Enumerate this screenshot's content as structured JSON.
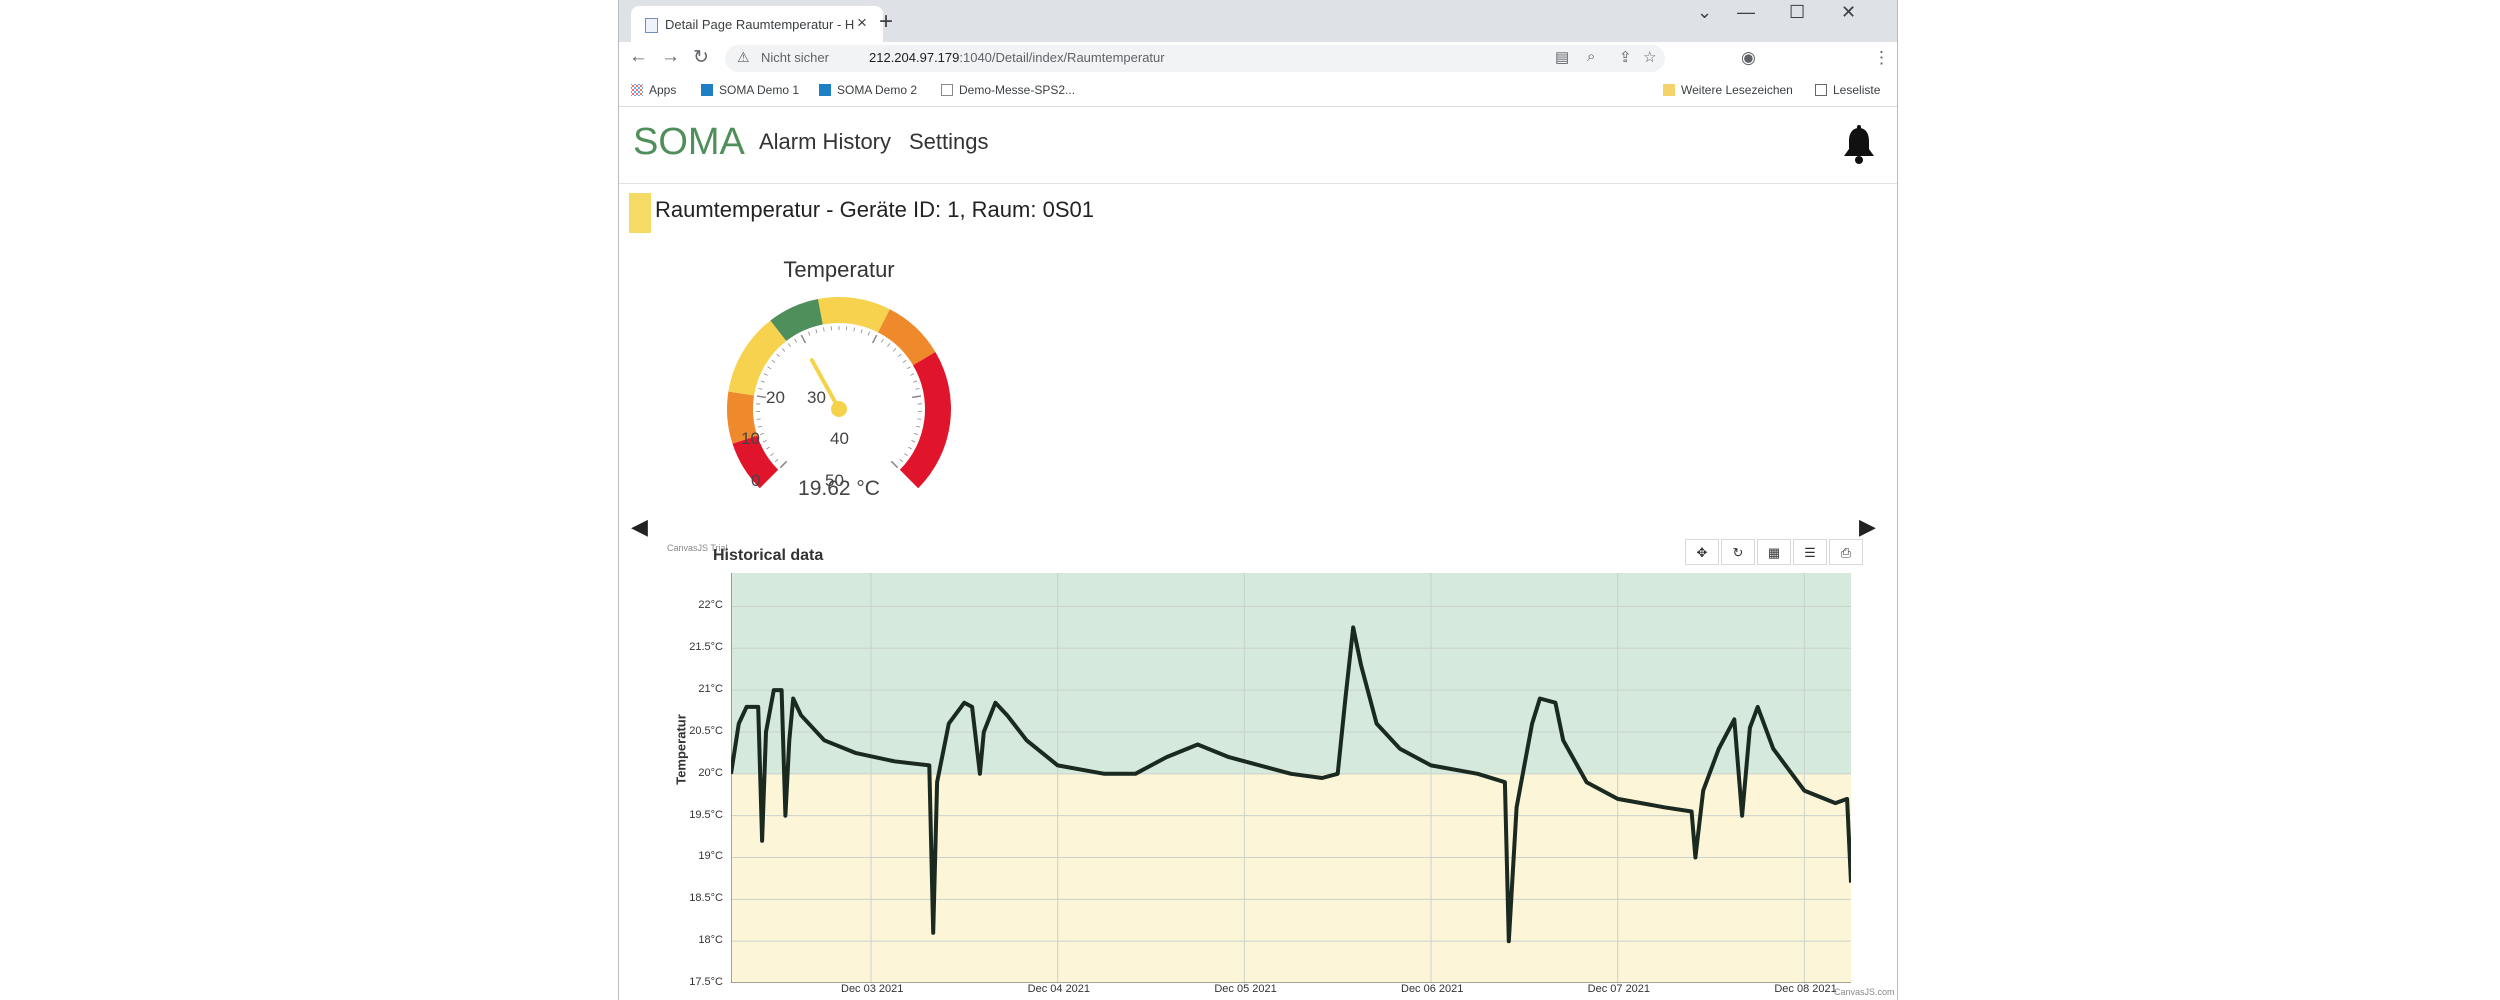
{
  "browser": {
    "tab_title": "Detail Page Raumtemperatur - H",
    "security_label": "Nicht sicher",
    "url_host": "212.204.97.179",
    "url_path": ":1040/Detail/index/Raumtemperatur",
    "bookmarks": [
      "Apps",
      "SOMA Demo 1",
      "SOMA Demo 2",
      "Demo-Messe-SPS2..."
    ],
    "other_bookmarks": "Weitere Lesezeichen",
    "reading_list": "Leseliste"
  },
  "app": {
    "brand": "SOMA",
    "nav": [
      "Alarm History",
      "Settings"
    ],
    "brand_color": "#4f8f5b"
  },
  "device": {
    "title": "Raumtemperatur - Geräte ID: 1, Raum: 0S01",
    "status_color": "#f5da66"
  },
  "gauge": {
    "title": "Temperatur",
    "ticks": [
      "0",
      "10",
      "20",
      "30",
      "40",
      "50"
    ],
    "min": 0,
    "max": 50,
    "value": 19.62,
    "readout": "19.62 °C",
    "bands": [
      {
        "from": 0,
        "to": 5,
        "color": "#e0152b"
      },
      {
        "from": 5,
        "to": 10,
        "color": "#ee8a2c"
      },
      {
        "from": 10,
        "to": 18,
        "color": "#f6d24f"
      },
      {
        "from": 18,
        "to": 23,
        "color": "#4f8f5b"
      },
      {
        "from": 23,
        "to": 30,
        "color": "#f6d24f"
      },
      {
        "from": 30,
        "to": 36,
        "color": "#ee8a2c"
      },
      {
        "from": 36,
        "to": 50,
        "color": "#e0152b"
      }
    ]
  },
  "history": {
    "trial_label": "CanvasJS Trial",
    "credit": "CanvasJS.com",
    "title": "Historical data",
    "toolbar": [
      "pan",
      "reset",
      "chart-type",
      "list",
      "export"
    ]
  },
  "chart_data": {
    "type": "line",
    "title": "Historical data",
    "ylabel": "Temperatur",
    "ylim": [
      17.5,
      22.4
    ],
    "y_ticks": [
      "17.5°C",
      "18°C",
      "18.5°C",
      "19°C",
      "19.5°C",
      "20°C",
      "20.5°C",
      "21°C",
      "21.5°C",
      "22°C"
    ],
    "x_ticks": [
      "Dec 03 2021",
      "Dec 04 2021",
      "Dec 05 2021",
      "Dec 06 2021",
      "Dec 07 2021",
      "Dec 08 2021"
    ],
    "x_range": [
      "2021-12-02T06:00",
      "2021-12-08T06:00"
    ],
    "bands": [
      {
        "from": 20,
        "to": 22.4,
        "color": "#d5e9dc"
      },
      {
        "from": 17.5,
        "to": 20,
        "color": "#fdf5d8"
      }
    ],
    "grid": true,
    "series": [
      {
        "color": "#1a2a20",
        "points": [
          [
            "2021-12-02T06:00",
            20.0
          ],
          [
            "2021-12-02T07:00",
            20.6
          ],
          [
            "2021-12-02T08:00",
            20.8
          ],
          [
            "2021-12-02T09:30",
            20.8
          ],
          [
            "2021-12-02T10:00",
            19.2
          ],
          [
            "2021-12-02T10:30",
            20.5
          ],
          [
            "2021-12-02T11:30",
            21.0
          ],
          [
            "2021-12-02T12:30",
            21.0
          ],
          [
            "2021-12-02T13:00",
            19.5
          ],
          [
            "2021-12-02T13:30",
            20.4
          ],
          [
            "2021-12-02T14:00",
            20.9
          ],
          [
            "2021-12-02T15:00",
            20.7
          ],
          [
            "2021-12-02T18:00",
            20.4
          ],
          [
            "2021-12-02T22:00",
            20.25
          ],
          [
            "2021-12-03T03:00",
            20.15
          ],
          [
            "2021-12-03T07:30",
            20.1
          ],
          [
            "2021-12-03T08:00",
            18.1
          ],
          [
            "2021-12-03T08:30",
            19.9
          ],
          [
            "2021-12-03T10:00",
            20.6
          ],
          [
            "2021-12-03T12:00",
            20.85
          ],
          [
            "2021-12-03T13:00",
            20.8
          ],
          [
            "2021-12-03T14:00",
            20.0
          ],
          [
            "2021-12-03T14:30",
            20.5
          ],
          [
            "2021-12-03T16:00",
            20.85
          ],
          [
            "2021-12-03T17:30",
            20.7
          ],
          [
            "2021-12-03T20:00",
            20.4
          ],
          [
            "2021-12-04T00:00",
            20.1
          ],
          [
            "2021-12-04T06:00",
            20.0
          ],
          [
            "2021-12-04T10:00",
            20.0
          ],
          [
            "2021-12-04T14:00",
            20.2
          ],
          [
            "2021-12-04T18:00",
            20.35
          ],
          [
            "2021-12-04T22:00",
            20.2
          ],
          [
            "2021-12-05T06:00",
            20.0
          ],
          [
            "2021-12-05T10:00",
            19.95
          ],
          [
            "2021-12-05T12:00",
            20.0
          ],
          [
            "2021-12-05T13:00",
            20.9
          ],
          [
            "2021-12-05T14:00",
            21.75
          ],
          [
            "2021-12-05T15:00",
            21.3
          ],
          [
            "2021-12-05T17:00",
            20.6
          ],
          [
            "2021-12-05T20:00",
            20.3
          ],
          [
            "2021-12-06T00:00",
            20.1
          ],
          [
            "2021-12-06T06:00",
            20.0
          ],
          [
            "2021-12-06T09:30",
            19.9
          ],
          [
            "2021-12-06T10:00",
            18.0
          ],
          [
            "2021-12-06T11:00",
            19.6
          ],
          [
            "2021-12-06T13:00",
            20.6
          ],
          [
            "2021-12-06T14:00",
            20.9
          ],
          [
            "2021-12-06T16:00",
            20.85
          ],
          [
            "2021-12-06T17:00",
            20.4
          ],
          [
            "2021-12-06T20:00",
            19.9
          ],
          [
            "2021-12-07T00:00",
            19.7
          ],
          [
            "2021-12-07T06:00",
            19.6
          ],
          [
            "2021-12-07T09:30",
            19.55
          ],
          [
            "2021-12-07T10:00",
            19.0
          ],
          [
            "2021-12-07T11:00",
            19.8
          ],
          [
            "2021-12-07T13:00",
            20.3
          ],
          [
            "2021-12-07T15:00",
            20.65
          ],
          [
            "2021-12-07T16:00",
            19.5
          ],
          [
            "2021-12-07T17:00",
            20.55
          ],
          [
            "2021-12-07T18:00",
            20.8
          ],
          [
            "2021-12-07T20:00",
            20.3
          ],
          [
            "2021-12-08T00:00",
            19.8
          ],
          [
            "2021-12-08T04:00",
            19.65
          ],
          [
            "2021-12-08T05:30",
            19.7
          ],
          [
            "2021-12-08T06:00",
            18.7
          ]
        ]
      }
    ]
  }
}
